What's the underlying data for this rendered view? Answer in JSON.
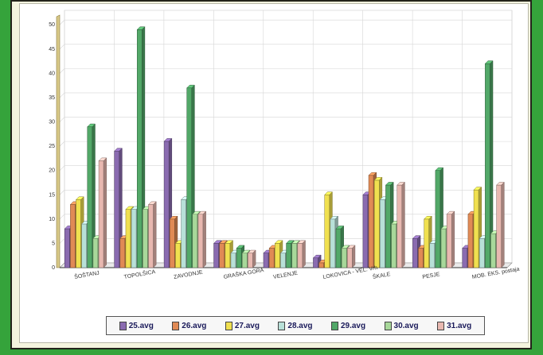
{
  "chart_data": {
    "type": "bar",
    "categories": [
      "ŠOŠTANJ",
      "TOPOLŠICA",
      "ZAVODNJE",
      "GRAŠKA GORA",
      "VELENJE",
      "LOKOVICA - VEL. Vrh",
      "ŠKALE",
      "PESJE",
      "MOB. EKS. postaja"
    ],
    "series": [
      {
        "name": "25.avg",
        "color": "#8a6bb0",
        "values": [
          8,
          24,
          26,
          5,
          3,
          2,
          15,
          6,
          4
        ]
      },
      {
        "name": "26.avg",
        "color": "#e08a55",
        "values": [
          13,
          6,
          10,
          5,
          4,
          1,
          19,
          4,
          11
        ]
      },
      {
        "name": "27.avg",
        "color": "#f0e050",
        "values": [
          14,
          12,
          5,
          5,
          5,
          15,
          18,
          10,
          16
        ]
      },
      {
        "name": "28.avg",
        "color": "#b8e0d8",
        "values": [
          9,
          12,
          14,
          3,
          3,
          10,
          14,
          5,
          6
        ]
      },
      {
        "name": "29.avg",
        "color": "#52a868",
        "values": [
          29,
          49,
          37,
          4,
          5,
          8,
          17,
          20,
          42
        ]
      },
      {
        "name": "30.avg",
        "color": "#a8d89a",
        "values": [
          6,
          12,
          11,
          3,
          5,
          4,
          9,
          8,
          7
        ]
      },
      {
        "name": "31.avg",
        "color": "#e8b8b0",
        "values": [
          22,
          13,
          11,
          3,
          5,
          4,
          17,
          11,
          17
        ]
      }
    ],
    "ylim": [
      0,
      52
    ],
    "yticks": [
      0,
      5,
      10,
      15,
      20,
      25,
      30,
      35,
      40,
      45,
      50
    ],
    "ytick_labels": [
      "0",
      "5",
      "10",
      "15",
      "20",
      "25",
      "30",
      "35",
      "40",
      "45",
      "50"
    ],
    "grid": true,
    "legend_position": "bottom",
    "title": "",
    "xlabel": "",
    "ylabel": ""
  }
}
